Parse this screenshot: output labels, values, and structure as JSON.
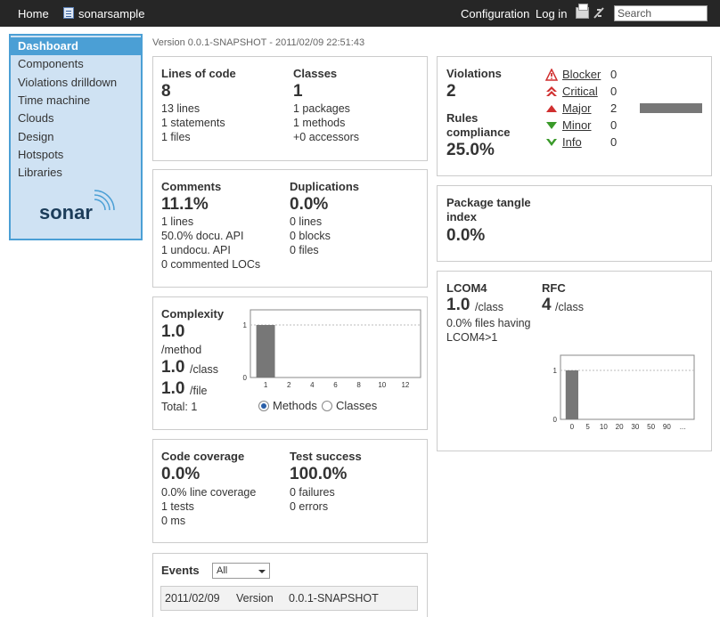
{
  "topbar": {
    "home": "Home",
    "project": "sonarsample",
    "configuration": "Configuration",
    "login": "Log in",
    "search_placeholder": "Search"
  },
  "sidebar": {
    "items": [
      "Dashboard",
      "Components",
      "Violations drilldown",
      "Time machine",
      "Clouds",
      "Design",
      "Hotspots",
      "Libraries"
    ],
    "logo": "sonar"
  },
  "version": "Version 0.0.1-SNAPSHOT - 2011/02/09 22:51:43",
  "size": {
    "loc_label": "Lines of code",
    "loc_value": "8",
    "lines": "13 lines",
    "statements": "1 statements",
    "files": "1 files",
    "classes_label": "Classes",
    "classes_value": "1",
    "packages": "1 packages",
    "methods": "1 methods",
    "accessors": "+0 accessors"
  },
  "comments": {
    "label": "Comments",
    "value": "11.1%",
    "lines": "1 lines",
    "docu": "50.0% docu. API",
    "undocu": "1 undocu. API",
    "commented": "0 commented LOCs",
    "dup_label": "Duplications",
    "dup_value": "0.0%",
    "dup_lines": "0 lines",
    "dup_blocks": "0 blocks",
    "dup_files": "0 files"
  },
  "complexity": {
    "label": "Complexity",
    "method_value": "1.0",
    "method_unit": "/method",
    "class_value": "1.0",
    "class_unit": "/class",
    "file_value": "1.0",
    "file_unit": "/file",
    "total": "Total: 1",
    "radio_methods": "Methods",
    "radio_classes": "Classes",
    "chart_data": {
      "type": "bar",
      "categories": [
        "1",
        "2",
        "4",
        "6",
        "8",
        "10",
        "12"
      ],
      "values": [
        1,
        0,
        0,
        0,
        0,
        0,
        0
      ],
      "ylim": [
        0,
        1
      ],
      "yticks": [
        "0",
        "1"
      ]
    }
  },
  "coverage": {
    "label": "Code coverage",
    "value": "0.0%",
    "line_cov": "0.0% line coverage",
    "tests": "1 tests",
    "ms": "0 ms",
    "success_label": "Test success",
    "success_value": "100.0%",
    "failures": "0 failures",
    "errors": "0 errors"
  },
  "events": {
    "label": "Events",
    "filter": "All",
    "rows": [
      {
        "date": "2011/02/09",
        "type": "Version",
        "name": "0.0.1-SNAPSHOT"
      }
    ]
  },
  "violations": {
    "label": "Violations",
    "value": "2",
    "rules_label_1": "Rules",
    "rules_label_2": "compliance",
    "rules_value": "25.0%",
    "severities": [
      {
        "name": "Blocker",
        "count": "0",
        "icon": "blocker-icon",
        "color": "#d02f2f"
      },
      {
        "name": "Critical",
        "count": "0",
        "icon": "critical-icon",
        "color": "#d02f2f"
      },
      {
        "name": "Major",
        "count": "2",
        "icon": "major-icon",
        "color": "#d02f2f"
      },
      {
        "name": "Minor",
        "count": "0",
        "icon": "minor-icon",
        "color": "#3a9a2a"
      },
      {
        "name": "Info",
        "count": "0",
        "icon": "info-icon",
        "color": "#3a9a2a"
      }
    ]
  },
  "tangle": {
    "label_1": "Package tangle",
    "label_2": "index",
    "value": "0.0%"
  },
  "lcom": {
    "label": "LCOM4",
    "value": "1.0",
    "unit": "/class",
    "desc_1": "0.0% files having",
    "desc_2": "LCOM4>1",
    "rfc_label": "RFC",
    "rfc_value": "4",
    "rfc_unit": "/class",
    "chart_data": {
      "type": "bar",
      "categories": [
        "0",
        "5",
        "10",
        "20",
        "30",
        "50",
        "90",
        "..."
      ],
      "values": [
        1,
        0,
        0,
        0,
        0,
        0,
        0,
        0
      ],
      "ylim": [
        0,
        1
      ],
      "yticks": [
        "0",
        "1"
      ]
    }
  }
}
